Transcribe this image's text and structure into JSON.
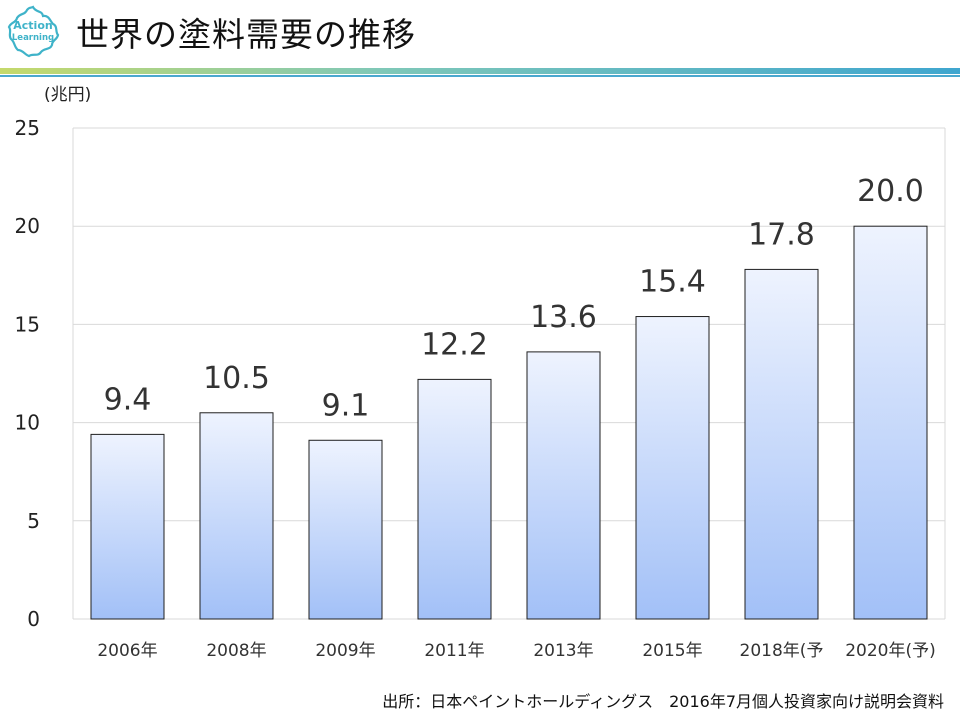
{
  "header": {
    "title": "世界の塗料需要の推移",
    "logo_text_top": "Action",
    "logo_text_bottom": "Learning"
  },
  "chart_data": {
    "type": "bar",
    "title": "世界の塗料需要の推移",
    "ylabel": "(兆円)",
    "xlabel": "",
    "categories": [
      "2006年",
      "2008年",
      "2009年",
      "2011年",
      "2013年",
      "2015年",
      "2018年(予",
      "2020年(予)"
    ],
    "values": [
      9.4,
      10.5,
      9.1,
      12.2,
      13.6,
      15.4,
      17.8,
      20.0
    ],
    "value_labels": [
      "9.4",
      "10.5",
      "9.1",
      "12.2",
      "13.6",
      "15.4",
      "17.8",
      "20.0"
    ],
    "ylim": [
      0,
      25
    ],
    "yticks": [
      0,
      5,
      10,
      15,
      20,
      25
    ],
    "grid": true,
    "legend": "none"
  },
  "colors": {
    "bar_top": "#eef3fe",
    "bar_bottom": "#a2c0f7",
    "bar_border": "#1f1f1f",
    "grid": "#d9d9d9",
    "logo": "#3fb3c9",
    "rule_left": "#c5d96b",
    "rule_right": "#3fa6cf"
  },
  "footer": {
    "source": "出所：日本ペイントホールディングス　2016年7月個人投資家向け説明会資料"
  }
}
